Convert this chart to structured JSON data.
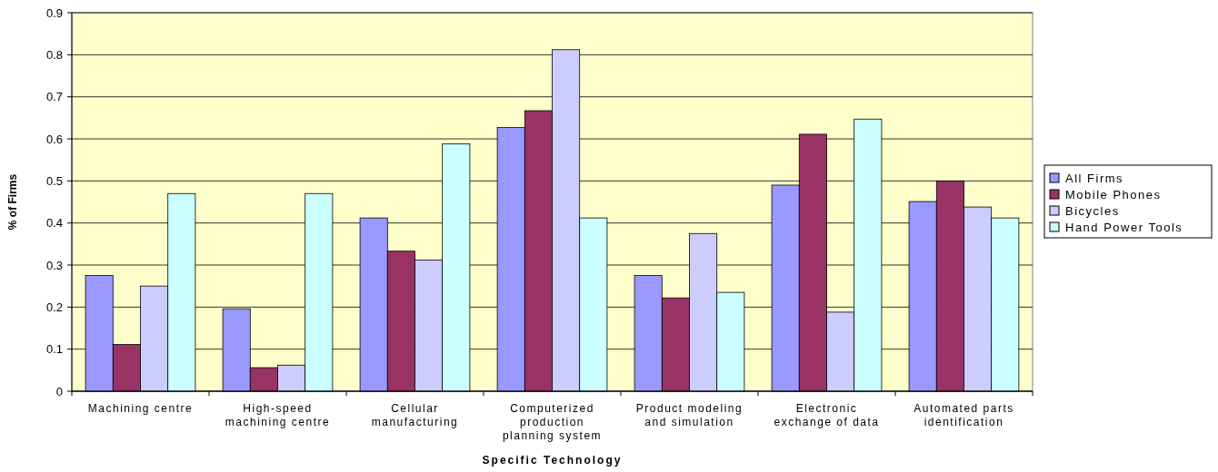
{
  "chart_data": {
    "type": "bar",
    "xlabel": "Specific Technology",
    "ylabel": "% of Firms",
    "categories": [
      "Machining centre",
      "High-speed machining centre",
      "Cellular manufacturing",
      "Computerized production planning system",
      "Product modeling and simulation",
      "Electronic exchange of data",
      "Automated parts identification"
    ],
    "series": [
      {
        "name": "All Firms",
        "color": "#9999ff",
        "values": [
          0.275,
          0.196,
          0.412,
          0.627,
          0.275,
          0.49,
          0.451
        ]
      },
      {
        "name": "Mobile Phones",
        "color": "#993366",
        "values": [
          0.111,
          0.056,
          0.333,
          0.667,
          0.222,
          0.611,
          0.5
        ]
      },
      {
        "name": "Bicycles",
        "color": "#ccccff",
        "values": [
          0.25,
          0.062,
          0.312,
          0.812,
          0.375,
          0.188,
          0.438
        ]
      },
      {
        "name": "Hand Power Tools",
        "color": "#ccffff",
        "values": [
          0.47,
          0.47,
          0.588,
          0.412,
          0.235,
          0.647,
          0.412
        ]
      }
    ],
    "ylim": [
      0,
      0.9
    ],
    "yticks": [
      0,
      0.1,
      0.2,
      0.3,
      0.4,
      0.5,
      0.6,
      0.7,
      0.8,
      0.9
    ],
    "grid": "y",
    "legend": "right"
  }
}
